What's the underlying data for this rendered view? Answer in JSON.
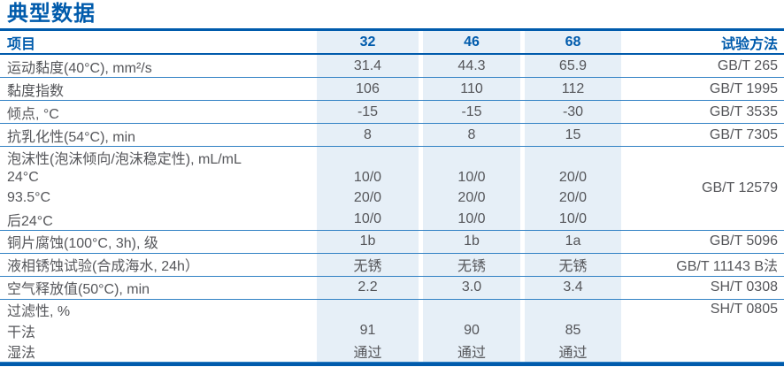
{
  "page_title": "典型数据",
  "colors": {
    "accent_blue": "#005bac",
    "row_rule_blue": "#3181c4",
    "column_bg_lightblue": "#e6eff7",
    "body_text": "#55565a"
  },
  "table": {
    "header": {
      "item": "项目",
      "c32": "32",
      "c46": "46",
      "c68": "68",
      "method": "试验方法"
    },
    "rows": [
      {
        "item": [
          "运动黏度(40°C), mm²/s"
        ],
        "c32": [
          "31.4"
        ],
        "c46": [
          "44.3"
        ],
        "c68": [
          "65.9"
        ],
        "method": "GB/T 265",
        "method_valign": "center"
      },
      {
        "item": [
          "黏度指数"
        ],
        "c32": [
          "106"
        ],
        "c46": [
          "110"
        ],
        "c68": [
          "112"
        ],
        "method": "GB/T 1995",
        "method_valign": "center"
      },
      {
        "item": [
          "倾点, °C"
        ],
        "c32": [
          "-15"
        ],
        "c46": [
          "-15"
        ],
        "c68": [
          "-30"
        ],
        "method": "GB/T 3535",
        "method_valign": "center"
      },
      {
        "item": [
          "抗乳化性(54°C), min"
        ],
        "c32": [
          "8"
        ],
        "c46": [
          "8"
        ],
        "c68": [
          "15"
        ],
        "method": "GB/T 7305",
        "method_valign": "center"
      },
      {
        "item": [
          "泡沫性(泡沫倾向/泡沫稳定性), mL/mL",
          "24°C",
          "93.5°C",
          "后24°C"
        ],
        "c32": [
          "",
          "10/0",
          "20/0",
          "10/0"
        ],
        "c46": [
          "",
          "10/0",
          "20/0",
          "10/0"
        ],
        "c68": [
          "",
          "20/0",
          "20/0",
          "10/0"
        ],
        "method": "GB/T 12579",
        "method_valign": "center"
      },
      {
        "item": [
          "铜片腐蚀(100°C, 3h), 级"
        ],
        "c32": [
          "1b"
        ],
        "c46": [
          "1b"
        ],
        "c68": [
          "1a"
        ],
        "method": "GB/T 5096",
        "method_valign": "center"
      },
      {
        "item": [
          "液相锈蚀试验(合成海水, 24h）"
        ],
        "c32": [
          "无锈"
        ],
        "c46": [
          "无锈"
        ],
        "c68": [
          "无锈"
        ],
        "method": "GB/T 11143 B法",
        "method_valign": "center"
      },
      {
        "item": [
          "空气释放值(50°C), min"
        ],
        "c32": [
          "2.2"
        ],
        "c46": [
          "3.0"
        ],
        "c68": [
          "3.4"
        ],
        "method": "SH/T 0308",
        "method_valign": "center"
      },
      {
        "item": [
          "过滤性, %",
          "干法",
          "湿法"
        ],
        "c32": [
          "",
          "91",
          "通过"
        ],
        "c46": [
          "",
          "90",
          "通过"
        ],
        "c68": [
          "",
          "85",
          "通过"
        ],
        "method": "SH/T 0805",
        "method_valign": "top"
      }
    ]
  }
}
